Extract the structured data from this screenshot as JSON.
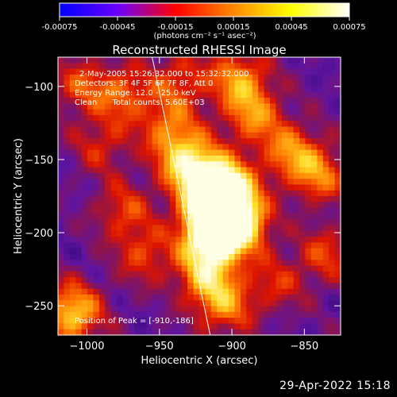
{
  "colorbar": {
    "ticks": [
      "-0.00075",
      "-0.00045",
      "-0.00015",
      "0.00015",
      "0.00045",
      "0.00075"
    ],
    "range": [
      -0.00075,
      0.00075
    ],
    "label": "(photons cm⁻² s⁻¹ asec⁻²)",
    "stops": [
      "#0000ff",
      "#6a00ff",
      "#ff0000",
      "#ff8800",
      "#ffff00",
      "#ffffff"
    ]
  },
  "chart_data": {
    "type": "heatmap",
    "title": "Reconstructed RHESSI Image",
    "xlabel": "Heliocentric X (arcsec)",
    "ylabel": "Heliocentric Y (arcsec)",
    "xlim": [
      -1020,
      -825
    ],
    "ylim": [
      -270,
      -80
    ],
    "xticks": [
      -1000,
      -950,
      -900,
      -850
    ],
    "xtick_labels": [
      "−1000",
      "−950",
      "−900",
      "−850"
    ],
    "yticks": [
      -250,
      -200,
      -150,
      -100
    ],
    "ytick_labels": [
      "−250",
      "−200",
      "−150",
      "−100"
    ],
    "limb_line": {
      "x": [
        -955,
        -915
      ],
      "y": [
        -80,
        -270
      ]
    },
    "peak": [
      -910,
      -186
    ],
    "annotations": [
      "2-May-2005 15:26:32.000 to 15:32:32.000",
      "Detectors: 3F 4F 5F 6F 7F 8F, Att 0",
      "Energy Range: 12.0 - 25.0 keV",
      "Clean      Total counts: 5.60E+03"
    ],
    "peak_label": "Position of Peak = [-910,-186]",
    "blobs": [
      {
        "x": -910,
        "y": -186,
        "v": 1.0
      },
      {
        "x": -905,
        "y": -170,
        "v": 0.75
      },
      {
        "x": -915,
        "y": -205,
        "v": 0.65
      },
      {
        "x": -925,
        "y": -160,
        "v": 0.55
      },
      {
        "x": -893,
        "y": -195,
        "v": 0.55
      },
      {
        "x": -918,
        "y": -230,
        "v": 0.45
      },
      {
        "x": -905,
        "y": -250,
        "v": 0.4
      },
      {
        "x": -885,
        "y": -120,
        "v": 0.4
      },
      {
        "x": -895,
        "y": -95,
        "v": 0.45
      },
      {
        "x": -860,
        "y": -145,
        "v": 0.4
      },
      {
        "x": -840,
        "y": -160,
        "v": 0.4
      },
      {
        "x": -835,
        "y": -215,
        "v": 0.3
      },
      {
        "x": -975,
        "y": -105,
        "v": 0.35
      },
      {
        "x": -1005,
        "y": -100,
        "v": 0.3
      },
      {
        "x": -945,
        "y": -125,
        "v": 0.3
      },
      {
        "x": -990,
        "y": -140,
        "v": 0.25
      },
      {
        "x": -975,
        "y": -185,
        "v": 0.3
      },
      {
        "x": -960,
        "y": -215,
        "v": 0.3
      },
      {
        "x": -935,
        "y": -95,
        "v": 0.3
      },
      {
        "x": -1010,
        "y": -255,
        "v": 0.6
      },
      {
        "x": -870,
        "y": -235,
        "v": 0.25
      },
      {
        "x": -935,
        "y": -145,
        "v": 0.35
      }
    ]
  },
  "footer": {
    "timestamp": "29-Apr-2022 15:18"
  }
}
